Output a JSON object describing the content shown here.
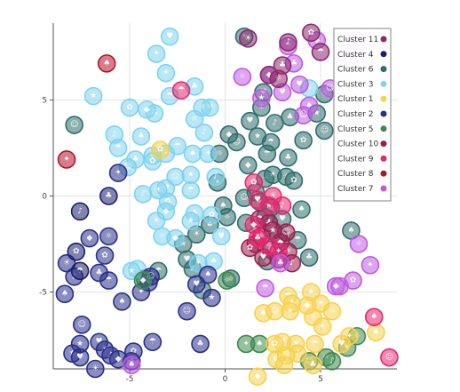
{
  "chart_data": {
    "type": "scatter",
    "title": "",
    "xlabel": "",
    "ylabel": "",
    "xlim": [
      -9,
      9
    ],
    "ylim": [
      -9,
      9
    ],
    "x_ticks": [
      -5,
      0,
      5
    ],
    "y_ticks": [
      -5,
      0,
      5
    ],
    "x_tick_labels": [
      "-5",
      "0",
      "5"
    ],
    "y_tick_labels": [
      "-5",
      "0",
      "5"
    ],
    "grid": true,
    "legend_position": "top-right",
    "series": [
      {
        "name": "Cluster 11",
        "color": "#8B2A6E",
        "points": [
          [
            1.2,
            8.2
          ],
          [
            3.3,
            8.0
          ],
          [
            4.5,
            8.5
          ],
          [
            5.0,
            7.5
          ],
          [
            3.0,
            6.8
          ],
          [
            2.3,
            6.3
          ],
          [
            2.8,
            6.1
          ]
        ]
      },
      {
        "name": "Cluster 4",
        "color": "#1A1F6E",
        "points": [
          [
            -7.6,
            -0.8
          ],
          [
            -7.8,
            -2.9
          ],
          [
            -7.6,
            -3.9
          ],
          [
            -6.1,
            0.0
          ]
        ]
      },
      {
        "name": "Cluster 6",
        "color": "#2F6E6E",
        "points": [
          [
            -7.9,
            3.7
          ],
          [
            -2.2,
            -2.5
          ],
          [
            -2.0,
            -3.3
          ],
          [
            -1.5,
            -2.0
          ],
          [
            -1.7,
            -3.8
          ],
          [
            -1.2,
            -4.9
          ],
          [
            -3.5,
            -3.9
          ],
          [
            -4.2,
            -4.3
          ],
          [
            0.3,
            -4.3
          ],
          [
            -0.3,
            2.2
          ],
          [
            -0.4,
            0.7
          ],
          [
            -0.1,
            -0.5
          ],
          [
            1.0,
            -0.1
          ],
          [
            1.8,
            -0.3
          ],
          [
            3.0,
            -1.2
          ],
          [
            2.1,
            -1.1
          ],
          [
            2.8,
            -2.1
          ],
          [
            2.4,
            -2.8
          ],
          [
            3.8,
            -2.3
          ],
          [
            4.4,
            -3.2
          ],
          [
            2.2,
            -3.4
          ],
          [
            0.1,
            -1.1
          ],
          [
            1.1,
            -1.4
          ],
          [
            6.6,
            -1.8
          ],
          [
            5.2,
            3.4
          ],
          [
            4.8,
            4.3
          ],
          [
            2.0,
            5.4
          ],
          [
            1.9,
            4.6
          ],
          [
            2.6,
            3.8
          ],
          [
            4.1,
            2.9
          ],
          [
            2.2,
            2.2
          ],
          [
            3.3,
            2.0
          ],
          [
            1.2,
            1.6
          ],
          [
            3.2,
            1.0
          ],
          [
            2.1,
            0.9
          ],
          [
            -0.8,
            -1.5
          ],
          [
            0.6,
            2.8
          ],
          [
            1.7,
            3.1
          ],
          [
            1.3,
            3.9
          ],
          [
            2.5,
            1.1
          ],
          [
            1.6,
            0.2
          ],
          [
            3.6,
            0.8
          ],
          [
            2.4,
            2.8
          ],
          [
            3.4,
            4.1
          ],
          [
            0.2,
            3.2
          ],
          [
            5.2,
            5.3
          ],
          [
            1.0,
            8.3
          ],
          [
            4.0,
            -0.7
          ],
          [
            2.4,
            -0.6
          ]
        ]
      },
      {
        "name": "Cluster 3",
        "color": "#7FD3EE",
        "points": [
          [
            -6.9,
            5.2
          ],
          [
            -2.9,
            8.3
          ],
          [
            -3.1,
            6.4
          ],
          [
            -5.8,
            3.2
          ],
          [
            -5.0,
            4.6
          ],
          [
            -5.6,
            2.5
          ],
          [
            -4.7,
            1.9
          ],
          [
            -3.8,
            2.1
          ],
          [
            -1.6,
            4.0
          ],
          [
            -3.1,
            2.2
          ],
          [
            -1.7,
            2.2
          ],
          [
            -2.6,
            1.0
          ],
          [
            -1.8,
            1.1
          ],
          [
            -3.1,
            0.4
          ],
          [
            -3.5,
            0.3
          ],
          [
            -4.3,
            0.1
          ],
          [
            -3.0,
            -0.3
          ],
          [
            -1.8,
            0.3
          ],
          [
            -1.6,
            -0.9
          ],
          [
            -2.6,
            -2.2
          ],
          [
            -3.3,
            -2.1
          ],
          [
            -1.4,
            -3.5
          ],
          [
            -0.6,
            -3.4
          ],
          [
            -4.6,
            -3.8
          ],
          [
            -4.9,
            -3.9
          ],
          [
            -0.8,
            4.6
          ],
          [
            -0.9,
            2.2
          ],
          [
            -1.1,
            3.3
          ],
          [
            -3.8,
            1.8
          ],
          [
            -2.5,
            2.6
          ],
          [
            -3.7,
            4.3
          ],
          [
            -4.1,
            4.5
          ],
          [
            -1.2,
            4.6
          ],
          [
            -3.6,
            7.4
          ],
          [
            -4.4,
            3.1
          ],
          [
            -5.1,
            1.5
          ],
          [
            -1.8,
            -1.3
          ],
          [
            -0.2,
            -2.1
          ],
          [
            -3.6,
            -1.3
          ],
          [
            -0.5,
            1.0
          ],
          [
            -0.7,
            -1.0
          ],
          [
            -2.9,
            5.2
          ],
          [
            -1.6,
            5.7
          ],
          [
            -3.1,
            -0.8
          ],
          [
            4.4,
            5.6
          ]
        ]
      },
      {
        "name": "Cluster 1",
        "color": "#F6D24E",
        "points": [
          [
            -3.4,
            2.4
          ],
          [
            3.3,
            -5.2
          ],
          [
            3.5,
            -5.6
          ],
          [
            4.3,
            -5.7
          ],
          [
            4.6,
            -6.3
          ],
          [
            5.1,
            -6.8
          ],
          [
            2.0,
            -6.1
          ],
          [
            2.6,
            -6.0
          ],
          [
            3.4,
            -6.0
          ],
          [
            3.0,
            -7.6
          ],
          [
            3.7,
            -7.7
          ],
          [
            3.8,
            -8.2
          ],
          [
            2.7,
            -8.5
          ],
          [
            4.7,
            -7.7
          ],
          [
            4.6,
            -8.8
          ],
          [
            1.7,
            -9.4
          ],
          [
            5.6,
            -6.0
          ],
          [
            6.5,
            -7.3
          ],
          [
            7.9,
            -7.1
          ],
          [
            3.2,
            -8.3
          ],
          [
            4.5,
            -5.0
          ],
          [
            6.1,
            -7.7
          ],
          [
            5.0,
            -5.6
          ],
          [
            3.1,
            -8.8
          ],
          [
            2.6,
            -7.7
          ]
        ]
      },
      {
        "name": "Cluster 2",
        "color": "#2A2F8A",
        "points": [
          [
            -5.6,
            1.2
          ],
          [
            -8.4,
            -5.1
          ],
          [
            -7.5,
            -6.7
          ],
          [
            -7.6,
            -7.7
          ],
          [
            -6.6,
            -7.6
          ],
          [
            -6.3,
            -8.0
          ],
          [
            -6.0,
            -8.3
          ],
          [
            -4.8,
            -8.1
          ],
          [
            -3.8,
            -7.6
          ],
          [
            -1.3,
            -7.7
          ],
          [
            -5.6,
            -8.5
          ],
          [
            -4.9,
            -8.6
          ],
          [
            -4.0,
            -4.5
          ],
          [
            -0.9,
            -4.1
          ],
          [
            -2.0,
            -6.0
          ],
          [
            -0.7,
            -5.3
          ],
          [
            -1.5,
            -4.6
          ],
          [
            -8.3,
            -3.5
          ],
          [
            -7.9,
            -4.2
          ],
          [
            -6.3,
            -3.1
          ],
          [
            -6.1,
            -4.4
          ],
          [
            -6.6,
            -4.0
          ],
          [
            -7.1,
            -2.2
          ],
          [
            -6.1,
            -2.1
          ],
          [
            -4.4,
            -5.0
          ],
          [
            -5.4,
            -5.5
          ],
          [
            -3.9,
            -4.2
          ],
          [
            -8.0,
            -8.2
          ],
          [
            -7.6,
            -8.4
          ],
          [
            -6.8,
            -9.0
          ]
        ]
      },
      {
        "name": "Cluster 5",
        "color": "#3F8A4E",
        "points": [
          [
            -4.3,
            -4.4
          ],
          [
            0.1,
            -4.4
          ],
          [
            1.1,
            -7.7
          ],
          [
            1.8,
            -7.7
          ],
          [
            4.4,
            -8.6
          ],
          [
            5.3,
            -8.4
          ],
          [
            6.4,
            -7.9
          ],
          [
            6.9,
            -7.3
          ],
          [
            5.6,
            -8.6
          ]
        ]
      },
      {
        "name": "Cluster 10",
        "color": "#9E1F4E",
        "points": [
          [
            1.8,
            -1.2
          ],
          [
            2.3,
            -1.4
          ],
          [
            2.9,
            -2.4
          ],
          [
            1.6,
            -2.5
          ],
          [
            2.8,
            -3.3
          ],
          [
            1.9,
            -2.1
          ],
          [
            3.2,
            -1.9
          ],
          [
            2.5,
            -1.8
          ],
          [
            2.0,
            -3.2
          ],
          [
            3.3,
            -2.9
          ],
          [
            3.5,
            -3.5
          ],
          [
            1.3,
            -2.7
          ]
        ]
      },
      {
        "name": "Cluster 9",
        "color": "#E8276E",
        "points": [
          [
            -2.3,
            5.5
          ],
          [
            1.7,
            -2.2
          ],
          [
            1.5,
            -1.5
          ],
          [
            2.3,
            -2.6
          ],
          [
            2.8,
            -2.9
          ],
          [
            7.8,
            -6.3
          ],
          [
            8.6,
            -8.4
          ],
          [
            2.3,
            -0.5
          ],
          [
            1.7,
            -0.2
          ],
          [
            2.5,
            0.0
          ],
          [
            3.0,
            -0.5
          ],
          [
            1.5,
            0.7
          ]
        ]
      },
      {
        "name": "Cluster 8",
        "color": "#B2142A",
        "points": [
          [
            -8.3,
            1.9
          ],
          [
            -6.2,
            6.9
          ]
        ]
      },
      {
        "name": "Cluster 7",
        "color": "#C05BE0",
        "points": [
          [
            3.3,
            7.8
          ],
          [
            3.6,
            6.9
          ],
          [
            4.8,
            8.1
          ],
          [
            0.9,
            6.2
          ],
          [
            2.3,
            6.3
          ],
          [
            4.4,
            4.7
          ],
          [
            4.1,
            4.2
          ],
          [
            1.9,
            5.1
          ],
          [
            3.0,
            5.4
          ],
          [
            6.5,
            6.9
          ],
          [
            6.0,
            -4.7
          ],
          [
            6.7,
            -4.4
          ],
          [
            2.1,
            -4.8
          ],
          [
            2.9,
            -3.5
          ],
          [
            5.8,
            -4.7
          ],
          [
            7.0,
            -2.5
          ],
          [
            7.6,
            -3.6
          ],
          [
            -4.9,
            -8.8
          ],
          [
            5.5,
            5.6
          ],
          [
            6.9,
            8.1
          ],
          [
            3.9,
            5.8
          ]
        ]
      }
    ]
  }
}
